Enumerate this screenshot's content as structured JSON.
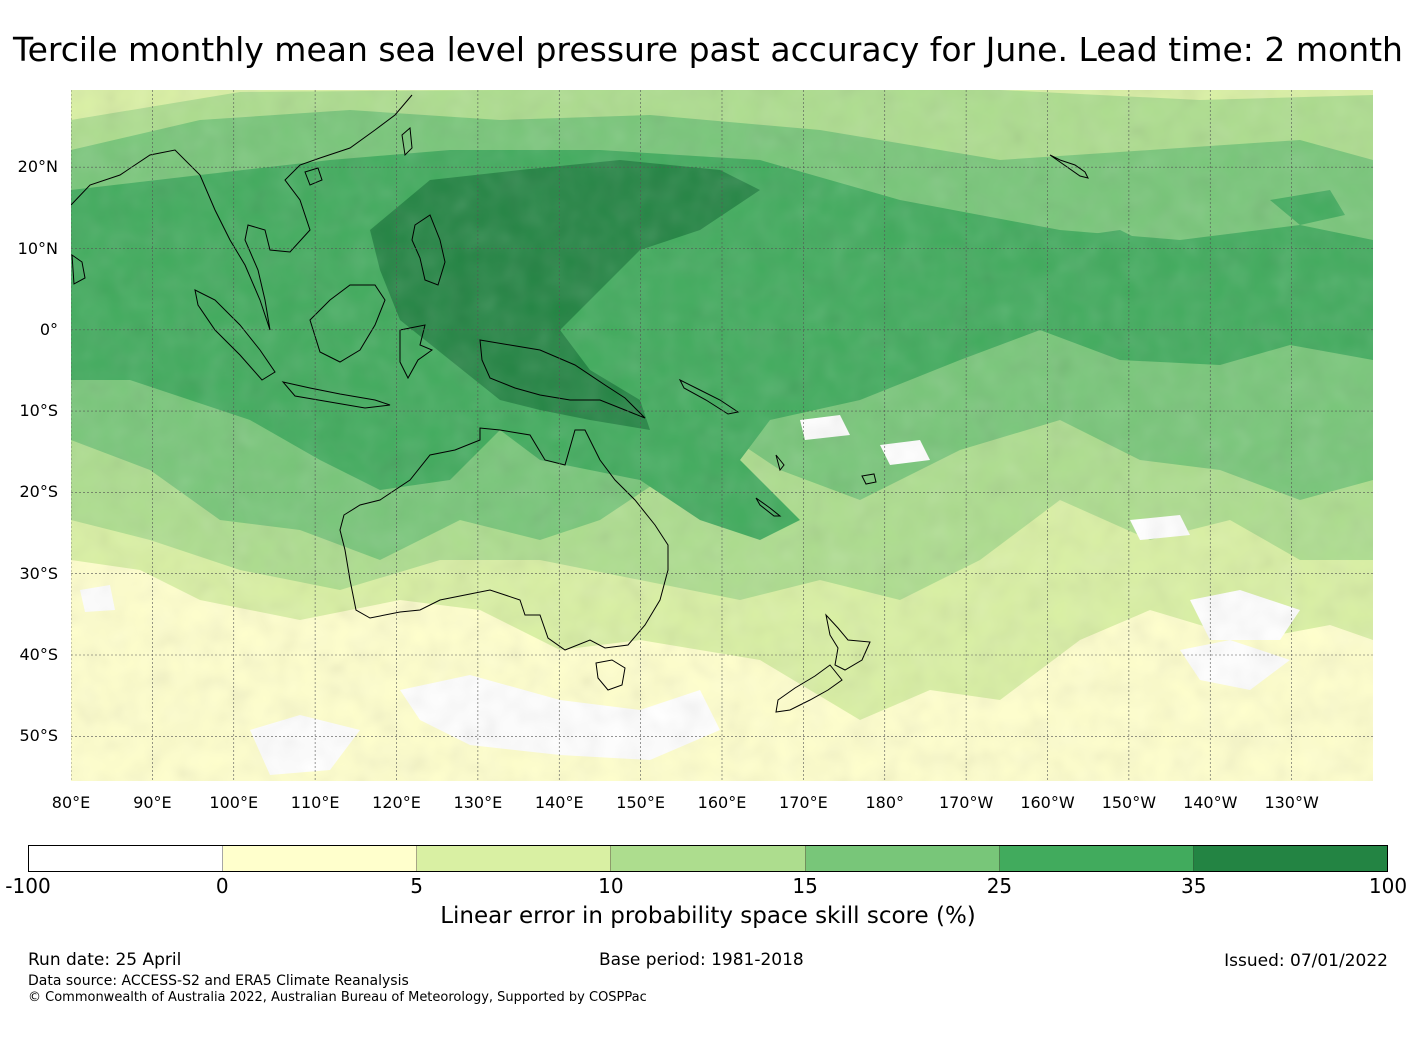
{
  "title": "Tercile monthly mean sea level pressure past accuracy for June. Lead time: 2 month",
  "map": {
    "lat_labels": [
      "20°N",
      "10°N",
      "0°",
      "10°S",
      "20°S",
      "30°S",
      "40°S",
      "50°S"
    ],
    "lon_labels": [
      "80°E",
      "90°E",
      "100°E",
      "110°E",
      "120°E",
      "130°E",
      "140°E",
      "150°E",
      "160°E",
      "170°E",
      "180°",
      "170°W",
      "160°W",
      "150°W",
      "140°W",
      "130°W"
    ],
    "lat_values": [
      20,
      10,
      0,
      -10,
      -20,
      -30,
      -40,
      -50
    ],
    "lon_values": [
      80,
      90,
      100,
      110,
      120,
      130,
      140,
      150,
      160,
      170,
      180,
      190,
      200,
      210,
      220,
      230
    ],
    "extent": {
      "lon_min": 80,
      "lon_max": 240,
      "lat_min": -55.5,
      "lat_max": 29.5
    }
  },
  "colorbar": {
    "ticks": [
      "-100",
      "0",
      "5",
      "10",
      "15",
      "25",
      "35",
      "100"
    ],
    "colors": [
      "#ffffff",
      "#ffffcc",
      "#d9f0a3",
      "#addd8e",
      "#78c679",
      "#41ab5d",
      "#238443"
    ],
    "label": "Linear error in probability space skill score (%)"
  },
  "footer": {
    "run_date": "Run date: 25 April",
    "base_period": "Base period: 1981-2018",
    "issued": "Issued: 07/01/2022",
    "data_source": "Data source: ACCESS-S2 and ERA5 Climate Reanalysis",
    "copyright": "© Commonwealth of Australia 2022, Australian Bureau of Meteorology, Supported by COSPPac"
  }
}
